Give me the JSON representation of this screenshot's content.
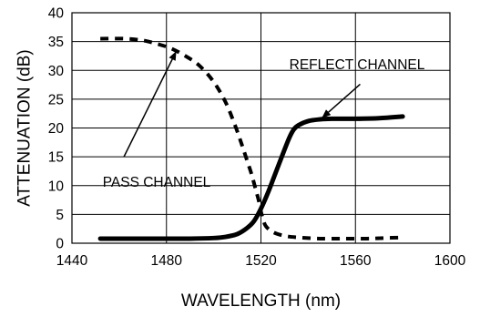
{
  "chart_data": {
    "type": "line",
    "title": "",
    "xlabel": "WAVELENGTH (nm)",
    "ylabel": "ATTENUATION (dB)",
    "xlim": [
      1440,
      1600
    ],
    "ylim": [
      0,
      40
    ],
    "x_ticks": [
      1440,
      1480,
      1520,
      1560,
      1600
    ],
    "y_ticks": [
      0,
      5,
      10,
      15,
      20,
      25,
      30,
      35,
      40
    ],
    "grid": "horizontal",
    "legend": "none",
    "series": [
      {
        "name": "PASS CHANNEL",
        "style": "dashed",
        "color": "#000000",
        "x": [
          1452,
          1462,
          1470,
          1476,
          1482,
          1488,
          1494,
          1500,
          1505,
          1509,
          1512,
          1514,
          1516,
          1518,
          1519,
          1520,
          1521,
          1522,
          1524,
          1527,
          1531,
          1536,
          1545,
          1555,
          1565,
          1572,
          1580
        ],
        "y": [
          35.5,
          35.5,
          35.2,
          34.6,
          33.8,
          32.5,
          30.8,
          28,
          24.5,
          20.5,
          17,
          14.5,
          12,
          9,
          7.5,
          5.5,
          4,
          3,
          2.2,
          1.6,
          1.2,
          1,
          0.8,
          0.8,
          0.8,
          0.9,
          1
        ]
      },
      {
        "name": "REFLECT CHANNEL",
        "style": "solid",
        "color": "#000000",
        "x": [
          1452,
          1470,
          1490,
          1500,
          1505,
          1510,
          1514,
          1517,
          1520,
          1523,
          1526,
          1529,
          1532,
          1534,
          1536,
          1540,
          1545,
          1550,
          1560,
          1570,
          1580
        ],
        "y": [
          0.8,
          0.8,
          0.8,
          0.9,
          1.1,
          1.6,
          2.6,
          3.8,
          6,
          8.8,
          12,
          15.2,
          18.3,
          19.8,
          20.5,
          21.2,
          21.5,
          21.6,
          21.6,
          21.7,
          22
        ]
      }
    ],
    "annotations": [
      {
        "text": "PASS CHANNEL",
        "text_x": 1453,
        "text_y": 9.8,
        "arrow_from": [
          1462,
          15
        ],
        "arrow_to": [
          1484,
          33.2
        ]
      },
      {
        "text": "REFLECT CHANNEL",
        "text_x": 1532,
        "text_y": 30.2,
        "arrow_from": [
          1562,
          27.6
        ],
        "arrow_to": [
          1546,
          21.8
        ]
      }
    ]
  }
}
